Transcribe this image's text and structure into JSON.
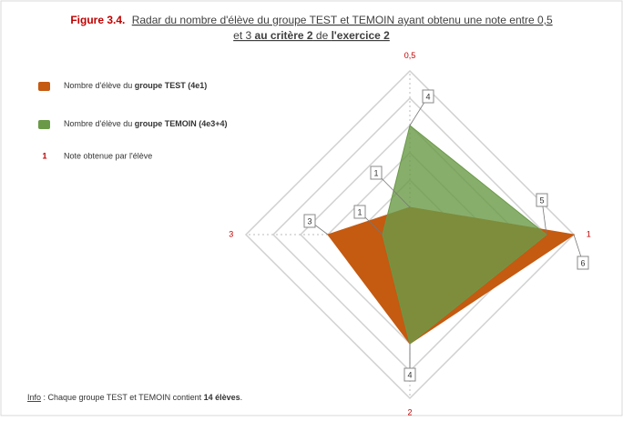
{
  "chart_data": {
    "type": "radar",
    "title_parts": [
      "Figure 3.4.",
      "Radar du nombre  d'élève du groupe TEST et TEMOIN ayant obtenu  une note  entre 0,5",
      "et 3 ",
      "au critère 2",
      " de ",
      "l'exercice 2"
    ],
    "categories": [
      "0,5",
      "1",
      "2",
      "3"
    ],
    "legend_prefix": "Nombre d'élève du ",
    "series": [
      {
        "name": "groupe TEST (4e1)",
        "color": "#c55a11",
        "values": [
          1,
          6,
          4,
          3
        ]
      },
      {
        "name": "groupe TEMOIN (4e3+4)",
        "color": "#6a9a47",
        "values": [
          4,
          5,
          4,
          1
        ]
      }
    ],
    "value_legend": {
      "symbol": "1",
      "text": "Note obtenue par l'élève"
    },
    "ylim": [
      0,
      6
    ],
    "yticks": [
      1,
      2,
      3,
      4,
      5,
      6
    ],
    "grid": true,
    "note_parts": [
      "Info",
      " : Chaque groupe TEST et TEMOIN contient ",
      "14 élèves",
      "."
    ]
  }
}
